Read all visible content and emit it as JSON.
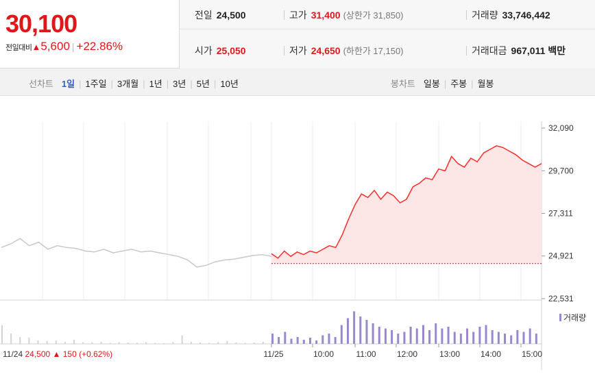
{
  "quote": {
    "price": "30,100",
    "change_label": "전일대비",
    "change_arrow": "▲",
    "change_value": "5,600",
    "change_sep": "|",
    "change_pct": "+22.86%",
    "up_color": "#e0171a"
  },
  "stats": {
    "prev_close": {
      "label": "전일",
      "value": "24,500"
    },
    "high": {
      "label": "고가",
      "value": "31,400",
      "sub": "(상한가 31,850)"
    },
    "volume": {
      "label": "거래량",
      "value": "33,746,442"
    },
    "open": {
      "label": "시가",
      "value": "25,050"
    },
    "low": {
      "label": "저가",
      "value": "24,650",
      "sub": "(하한가 17,150)"
    },
    "amount": {
      "label": "거래대금",
      "value": "967,011",
      "unit": "백만"
    }
  },
  "toolbar": {
    "line_label": "선차트",
    "line_periods": [
      "1일",
      "1주일",
      "3개월",
      "1년",
      "3년",
      "5년",
      "10년"
    ],
    "line_selected": "1일",
    "candle_label": "봉차트",
    "candle_periods": [
      "일봉",
      "주봉",
      "월봉"
    ],
    "divider": "|"
  },
  "chart_data": {
    "type": "line",
    "y_ticks": [
      "32,090",
      "29,700",
      "27,311",
      "24,921",
      "22,531"
    ],
    "ylim": [
      22531,
      32090
    ],
    "reference_line": 24500,
    "x_ticks": [
      "11/25",
      "10:00",
      "11:00",
      "12:00",
      "13:00",
      "14:00",
      "15:00"
    ],
    "volume_label": "거래량",
    "prev_day_caption": {
      "date": "11/24",
      "price": "24,500",
      "arrow": "▲",
      "change": "150",
      "pct": "(+0.62%)"
    },
    "series": [
      {
        "values_prev_day": [
          25400,
          25600,
          25900,
          25500,
          25700,
          25300,
          25500,
          25400,
          25350,
          25200,
          25150,
          25300,
          25100,
          25200,
          25300,
          25150,
          25200,
          25100,
          25000,
          24900,
          24700,
          24300,
          24400,
          24600,
          24700,
          24750,
          24850,
          24950,
          25000,
          24900
        ],
        "values": [
          25050,
          24800,
          25200,
          24900,
          25150,
          25000,
          25200,
          25100,
          25300,
          25500,
          25400,
          26100,
          27000,
          27800,
          28400,
          28200,
          28600,
          28100,
          28500,
          28300,
          27900,
          28100,
          28800,
          29000,
          29300,
          29200,
          29800,
          29700,
          30500,
          30100,
          29900,
          30400,
          30200,
          30700,
          30900,
          31100,
          31000,
          30800,
          30600,
          30300,
          30100,
          29900,
          30100
        ]
      }
    ],
    "volume_prev_day": [
      0.55,
      0.3,
      0.2,
      0.18,
      0.1,
      0.08,
      0.1,
      0.06,
      0.12,
      0.05,
      0.04,
      0.06,
      0.03,
      0.05,
      0.04,
      0.03,
      0.05,
      0.03,
      0.02,
      0.05,
      0.25,
      0.06,
      0.04,
      0.03,
      0.05,
      0.08,
      0.04,
      0.03,
      0.04,
      0.06
    ],
    "volume": [
      0.3,
      0.2,
      0.35,
      0.15,
      0.2,
      0.12,
      0.18,
      0.1,
      0.25,
      0.3,
      0.2,
      0.55,
      0.75,
      0.95,
      0.8,
      0.7,
      0.6,
      0.5,
      0.45,
      0.4,
      0.3,
      0.35,
      0.5,
      0.45,
      0.55,
      0.4,
      0.6,
      0.45,
      0.5,
      0.35,
      0.3,
      0.45,
      0.35,
      0.5,
      0.55,
      0.4,
      0.35,
      0.3,
      0.25,
      0.4,
      0.35,
      0.45,
      0.3
    ],
    "colors": {
      "today": "#ff2a2a",
      "fill": "#fde6e6",
      "prev": "#c8c8c8",
      "vol_today": "#9b86d0",
      "vol_prev": "#d3d3d3",
      "ref": "#8c2a2a"
    }
  }
}
